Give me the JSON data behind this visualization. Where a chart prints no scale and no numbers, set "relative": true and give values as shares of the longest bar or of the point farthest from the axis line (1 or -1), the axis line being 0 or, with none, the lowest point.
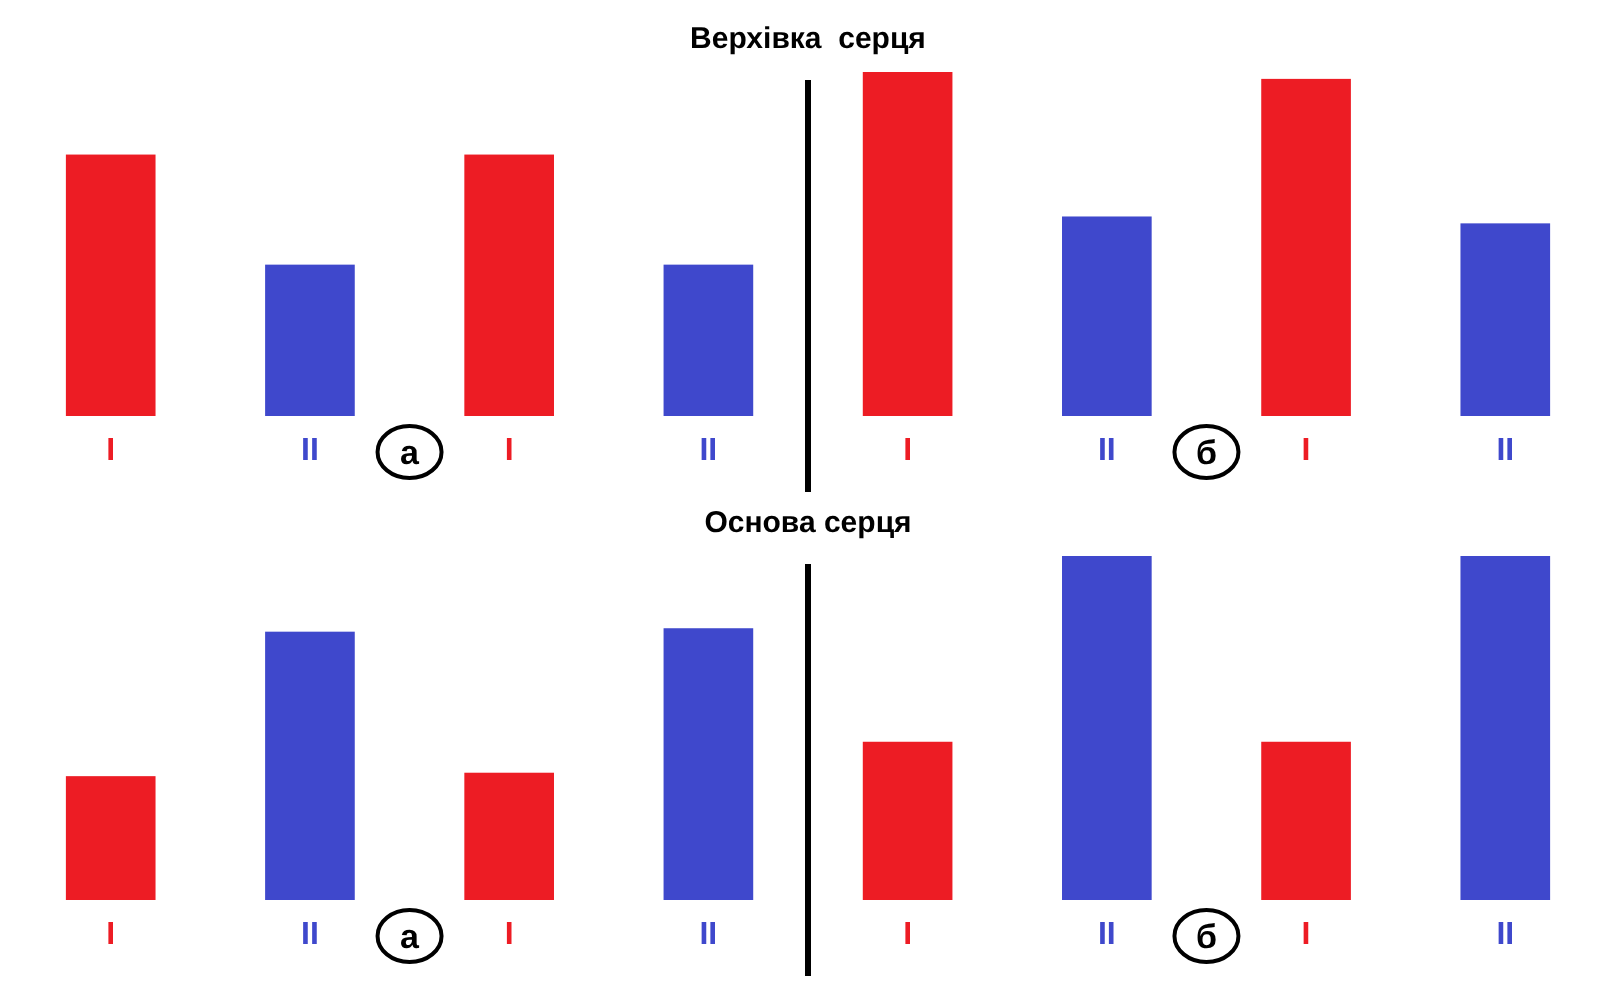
{
  "chart_data": [
    {
      "type": "bar",
      "relative": true,
      "title": "Верхівка  серця",
      "categories": [
        "I",
        "II",
        "I",
        "II",
        "I",
        "II",
        "I",
        "II"
      ],
      "values": [
        0.76,
        0.44,
        0.76,
        0.44,
        1,
        0.58,
        0.98,
        0.56
      ],
      "colors": [
        "#ed1c24",
        "#3f48cc",
        "#ed1c24",
        "#3f48cc",
        "#ed1c24",
        "#3f48cc",
        "#ed1c24",
        "#3f48cc"
      ],
      "annotations": [
        "а",
        "б"
      ]
    },
    {
      "type": "bar",
      "relative": true,
      "title": "Основа серця",
      "categories": [
        "I",
        "II",
        "I",
        "II",
        "I",
        "II",
        "I",
        "II"
      ],
      "values": [
        0.36,
        0.78,
        0.37,
        0.79,
        0.46,
        1,
        0.46,
        1
      ],
      "colors": [
        "#ed1c24",
        "#3f48cc",
        "#ed1c24",
        "#3f48cc",
        "#ed1c24",
        "#3f48cc",
        "#ed1c24",
        "#3f48cc"
      ],
      "annotations": [
        "а",
        "б"
      ]
    }
  ]
}
